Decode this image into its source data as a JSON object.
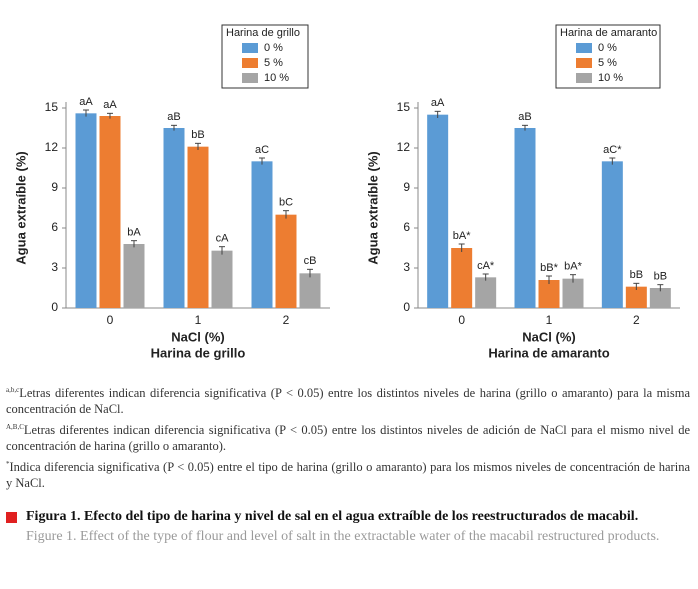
{
  "chart_data": [
    {
      "type": "bar",
      "ylabel": "Agua extraíble (%)",
      "xlabel": "NaCl (%)",
      "subtitle": "Harina de grillo",
      "legend_title": "Harina de grillo",
      "categories": [
        "0",
        "1",
        "2"
      ],
      "ylim": [
        0,
        15
      ],
      "yticks": [
        0,
        3,
        6,
        9,
        12,
        15
      ],
      "series": [
        {
          "name": "0 %",
          "color": "#5b9bd5",
          "values": [
            14.6,
            13.5,
            11.0
          ],
          "errors": [
            0.25,
            0.2,
            0.25
          ],
          "letters": [
            "aA",
            "aB",
            "aC"
          ]
        },
        {
          "name": "5 %",
          "color": "#ed7d31",
          "values": [
            14.4,
            12.1,
            7.0
          ],
          "errors": [
            0.2,
            0.25,
            0.3
          ],
          "letters": [
            "aA",
            "bB",
            "bC"
          ]
        },
        {
          "name": "10 %",
          "color": "#a5a5a5",
          "values": [
            4.8,
            4.3,
            2.6
          ],
          "errors": [
            0.25,
            0.3,
            0.3
          ],
          "letters": [
            "bA",
            "cA",
            "cB"
          ]
        }
      ]
    },
    {
      "type": "bar",
      "ylabel": "Agua extraíble (%)",
      "xlabel": "NaCl (%)",
      "subtitle": "Harina de amaranto",
      "legend_title": "Harina de amaranto",
      "categories": [
        "0",
        "1",
        "2"
      ],
      "ylim": [
        0,
        15
      ],
      "yticks": [
        0,
        3,
        6,
        9,
        12,
        15
      ],
      "series": [
        {
          "name": "0 %",
          "color": "#5b9bd5",
          "values": [
            14.5,
            13.5,
            11.0
          ],
          "errors": [
            0.25,
            0.2,
            0.25
          ],
          "letters": [
            "aA",
            "aB",
            "aC*"
          ]
        },
        {
          "name": "5 %",
          "color": "#ed7d31",
          "values": [
            4.5,
            2.1,
            1.6
          ],
          "errors": [
            0.3,
            0.3,
            0.25
          ],
          "letters": [
            "bA*",
            "bB*",
            "bB"
          ]
        },
        {
          "name": "10 %",
          "color": "#a5a5a5",
          "values": [
            2.3,
            2.2,
            1.5
          ],
          "errors": [
            0.25,
            0.3,
            0.25
          ],
          "letters": [
            "cA*",
            "bA*",
            "bB"
          ]
        }
      ]
    }
  ],
  "notes": [
    {
      "sup": "a,b,c",
      "text": "Letras diferentes indican diferencia significativa (P < 0.05) entre los distintos niveles de harina (grillo o amaranto) para la misma concentración de NaCl."
    },
    {
      "sup": "A,B,C",
      "text": "Letras diferentes indican diferencia significativa (P < 0.05) entre los distintos niveles de adición de NaCl para el mismo nivel de concentración de harina (grillo o amaranto)."
    },
    {
      "sup": "*",
      "text": "Indica diferencia significativa (P < 0.05) entre el tipo de harina (grillo o amaranto) para los mismos niveles de concentración de harina y NaCl."
    }
  ],
  "caption": {
    "es": "Figura 1. Efecto del tipo de harina y nivel de sal en el agua extraíble de los reestructurados de macabil.",
    "en": "Figure 1. Effect of the type of flour and level of salt in the extractable water of the macabil restructured products."
  }
}
